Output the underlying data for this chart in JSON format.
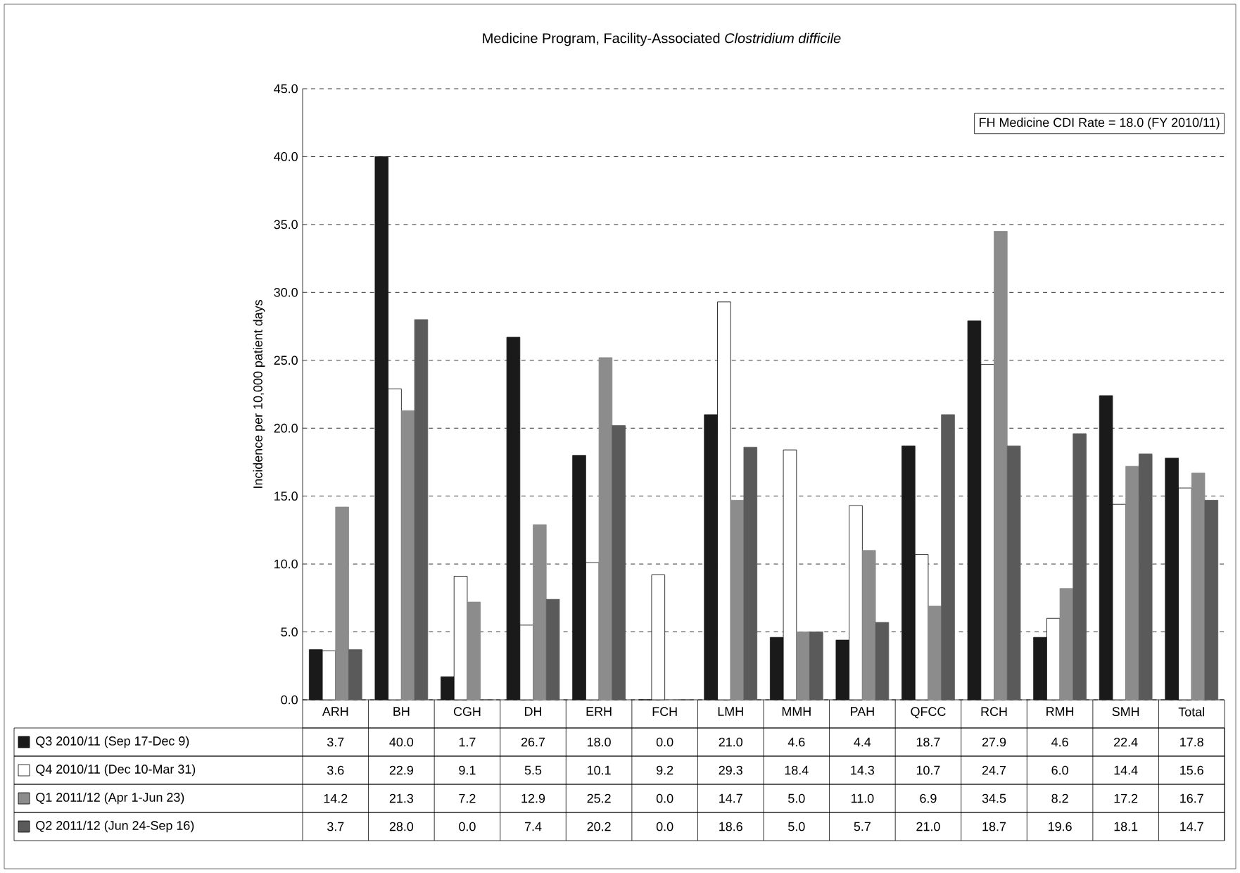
{
  "chart_data": {
    "type": "bar",
    "title": "Medicine Program, Facility-Associated *Clostridium difficile*",
    "ylabel": "Incidence per 10,000 patient days",
    "categories": [
      "ARH",
      "BH",
      "CGH",
      "DH",
      "ERH",
      "FCH",
      "LMH",
      "MMH",
      "PAH",
      "QFCC",
      "RCH",
      "RMH",
      "SMH",
      "Total"
    ],
    "series": [
      {
        "name": "Q3 2010/11 (Sep 17-Dec 9)",
        "color": "#1a1a1a",
        "values": [
          3.7,
          40.0,
          1.7,
          26.7,
          18.0,
          0.0,
          21.0,
          4.6,
          4.4,
          18.7,
          27.9,
          4.6,
          22.4,
          17.8
        ],
        "value_labels": [
          "3.7",
          "40.0",
          "1.7",
          "26.7",
          "18.0",
          "0.0",
          "21.0",
          "4.6",
          "4.4",
          "18.7",
          "27.9",
          "4.6",
          "22.4",
          "17.8"
        ]
      },
      {
        "name": "Q4 2010/11 (Dec 10-Mar 31)",
        "color": "#ffffff",
        "values": [
          3.6,
          22.9,
          9.1,
          5.5,
          10.1,
          9.2,
          29.3,
          18.4,
          14.3,
          10.7,
          24.7,
          6.0,
          14.4,
          15.6
        ],
        "value_labels": [
          "3.6",
          "22.9",
          "9.1",
          "5.5",
          "10.1",
          "9.2",
          "29.3",
          "18.4",
          "14.3",
          "10.7",
          "24.7",
          "6.0",
          "14.4",
          "15.6"
        ]
      },
      {
        "name": "Q1 2011/12 (Apr 1-Jun 23)",
        "color": "#8c8c8c",
        "values": [
          14.2,
          21.3,
          7.2,
          12.9,
          25.2,
          0.0,
          14.7,
          5.0,
          11.0,
          6.9,
          34.5,
          8.2,
          17.2,
          16.7
        ],
        "value_labels": [
          "14.2",
          "21.3",
          "7.2",
          "12.9",
          "25.2",
          "0.0",
          "14.7",
          "5.0",
          "11.0",
          "6.9",
          "34.5",
          "8.2",
          "17.2",
          "16.7"
        ]
      },
      {
        "name": "Q2 2011/12 (Jun 24-Sep 16)",
        "color": "#5a5a5a",
        "values": [
          3.7,
          28.0,
          0.0,
          7.4,
          20.2,
          0.0,
          18.6,
          5.0,
          5.7,
          21.0,
          18.7,
          19.6,
          18.1,
          14.7
        ],
        "value_labels": [
          "3.7",
          "28.0",
          "0.0",
          "7.4",
          "20.2",
          "0.0",
          "18.6",
          "5.0",
          "5.7",
          "21.0",
          "18.7",
          "19.6",
          "18.1",
          "14.7"
        ]
      }
    ],
    "ylim": [
      0,
      45
    ],
    "yticks": [
      {
        "value": 0,
        "label": "0.0"
      },
      {
        "value": 5,
        "label": "5.0"
      },
      {
        "value": 10,
        "label": "10.0"
      },
      {
        "value": 15,
        "label": "15.0"
      },
      {
        "value": 20,
        "label": "20.0"
      },
      {
        "value": 25,
        "label": "25.0"
      },
      {
        "value": 30,
        "label": "30.0"
      },
      {
        "value": 35,
        "label": "35.0"
      },
      {
        "value": 40,
        "label": "40.0"
      },
      {
        "value": 45,
        "label": "45.0"
      }
    ],
    "grid": "y",
    "line_style": "dashed",
    "legend": "bottom",
    "annotations": [
      "FH Medicine CDI Rate = 18.0 (FY 2010/11)"
    ]
  }
}
